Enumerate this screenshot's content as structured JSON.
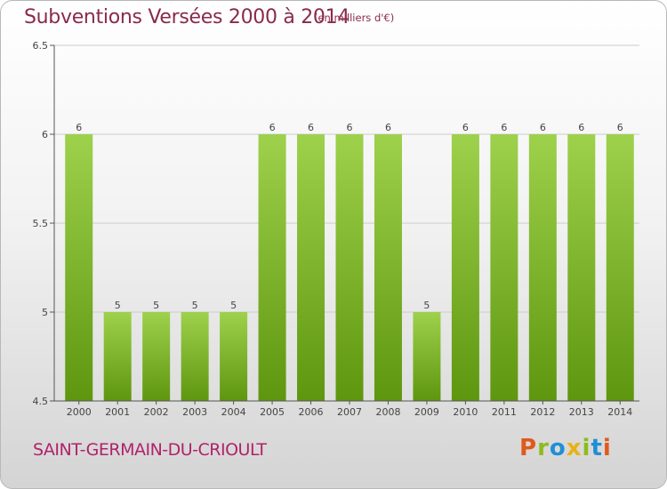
{
  "header": {
    "title": "Subventions Versées 2000 à 2014",
    "unit_note": "(en milliers d'€)"
  },
  "footer": {
    "commune": "SAINT-GERMAIN-DU-CRIOULT",
    "logo_letters": [
      "P",
      "r",
      "o",
      "x",
      "i",
      "t",
      "i"
    ],
    "logo_colors": [
      "#e05a1c",
      "#8dbb1e",
      "#1f8fd6",
      "#e8b214",
      "#8dbb1e",
      "#1f8fd6",
      "#e05a1c"
    ]
  },
  "colors": {
    "bar_top": "#9ed14c",
    "bar_bottom": "#5e960f",
    "axis": "#555555",
    "grid": "#cccccc",
    "text": "#444444"
  },
  "chart_data": {
    "type": "bar",
    "categories": [
      "2000",
      "2001",
      "2002",
      "2003",
      "2004",
      "2005",
      "2006",
      "2007",
      "2008",
      "2009",
      "2010",
      "2011",
      "2012",
      "2013",
      "2014"
    ],
    "values": [
      6,
      5,
      5,
      5,
      5,
      6,
      6,
      6,
      6,
      5,
      6,
      6,
      6,
      6,
      6
    ],
    "ylim": [
      4.5,
      6.5
    ],
    "yticks": [
      "4.5",
      "5",
      "5.5",
      "6",
      "6.5"
    ],
    "grid": true
  }
}
